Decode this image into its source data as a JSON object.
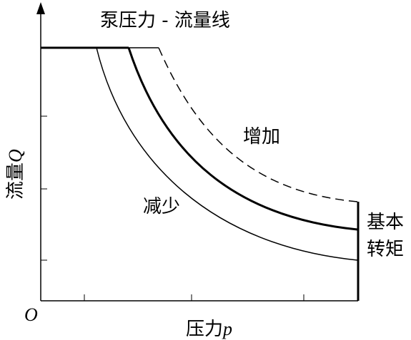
{
  "title": "泵压力 - 流量线",
  "labels": {
    "increase": "增加",
    "decrease": "减少",
    "torque_line1": "基本",
    "torque_line2": "转矩"
  },
  "axes": {
    "origin": "O",
    "x_label": {
      "text": "压力",
      "symbol": "p"
    },
    "y_label": {
      "text": "流量",
      "symbol": "Q"
    }
  }
}
